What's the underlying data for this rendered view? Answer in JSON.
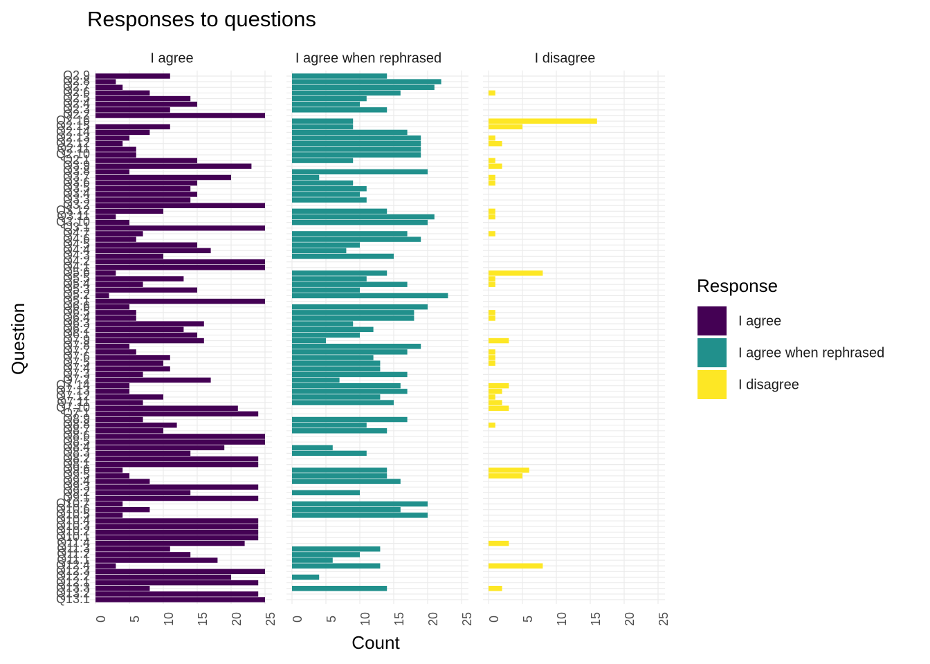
{
  "chart_data": {
    "type": "bar",
    "orientation": "horizontal",
    "facet": true,
    "title": "Responses to questions",
    "x_label": "Count",
    "y_label": "Question",
    "legend_title": "Response",
    "categories": [
      "Q2.9",
      "Q2.8",
      "Q2.7",
      "Q2.6",
      "Q2.5",
      "Q2.4",
      "Q2.3",
      "Q2.2",
      "Q2.16",
      "Q2.15",
      "Q2.14",
      "Q2.13",
      "Q2.12",
      "Q2.11",
      "Q2.10",
      "Q2.1",
      "Q3.9",
      "Q3.8",
      "Q3.7",
      "Q3.6",
      "Q3.5",
      "Q3.4",
      "Q3.3",
      "Q3.2",
      "Q3.12",
      "Q3.11",
      "Q3.10",
      "Q3.1",
      "Q4.7",
      "Q4.6",
      "Q4.5",
      "Q4.4",
      "Q4.3",
      "Q4.2",
      "Q4.1",
      "Q5.6",
      "Q5.5",
      "Q5.4",
      "Q5.3",
      "Q5.2",
      "Q5.1",
      "Q6.6",
      "Q6.5",
      "Q6.4",
      "Q6.3",
      "Q6.2",
      "Q6.1",
      "Q7.9",
      "Q7.8",
      "Q7.7",
      "Q7.6",
      "Q7.5",
      "Q7.4",
      "Q7.3",
      "Q7.2",
      "Q7.14",
      "Q7.13",
      "Q7.12",
      "Q7.11",
      "Q7.10",
      "Q7.1",
      "Q8.9",
      "Q8.8",
      "Q8.7",
      "Q8.6",
      "Q8.5",
      "Q8.4",
      "Q8.3",
      "Q8.2",
      "Q8.1",
      "Q9.6",
      "Q9.5",
      "Q9.4",
      "Q9.3",
      "Q9.2",
      "Q9.1",
      "Q10.7",
      "Q10.6",
      "Q10.5",
      "Q10.4",
      "Q10.3",
      "Q10.2",
      "Q10.1",
      "Q11.4",
      "Q11.3",
      "Q11.2",
      "Q11.1",
      "Q12.4",
      "Q12.3",
      "Q12.2",
      "Q12.1",
      "Q13.3",
      "Q13.2",
      "Q13.1"
    ],
    "series": [
      {
        "name": "I agree",
        "color": "#440154",
        "values": [
          11,
          3,
          4,
          8,
          14,
          15,
          11,
          25,
          null,
          11,
          8,
          5,
          4,
          6,
          6,
          15,
          23,
          5,
          20,
          15,
          14,
          15,
          14,
          25,
          10,
          3,
          5,
          25,
          7,
          6,
          15,
          17,
          10,
          25,
          25,
          3,
          13,
          7,
          15,
          2,
          25,
          5,
          6,
          6,
          16,
          13,
          15,
          16,
          5,
          6,
          11,
          10,
          11,
          7,
          17,
          5,
          5,
          10,
          7,
          21,
          24,
          7,
          12,
          10,
          25,
          25,
          19,
          14,
          24,
          24,
          4,
          5,
          8,
          24,
          14,
          24,
          4,
          8,
          4,
          24,
          24,
          24,
          24,
          22,
          11,
          14,
          18,
          3,
          25,
          20,
          24,
          8,
          24,
          25
        ]
      },
      {
        "name": "I agree when rephrased",
        "color": "#21908C",
        "values": [
          14,
          22,
          21,
          16,
          11,
          10,
          14,
          null,
          9,
          9,
          17,
          19,
          19,
          19,
          19,
          9,
          null,
          20,
          4,
          9,
          11,
          10,
          11,
          null,
          14,
          21,
          20,
          null,
          17,
          19,
          10,
          8,
          15,
          null,
          null,
          14,
          11,
          17,
          10,
          23,
          null,
          20,
          18,
          18,
          9,
          12,
          10,
          5,
          19,
          17,
          12,
          13,
          13,
          17,
          7,
          16,
          17,
          13,
          15,
          null,
          null,
          17,
          11,
          14,
          null,
          null,
          6,
          11,
          null,
          null,
          14,
          14,
          16,
          null,
          10,
          null,
          20,
          16,
          20,
          null,
          null,
          null,
          null,
          null,
          13,
          10,
          6,
          13,
          null,
          4,
          null,
          14,
          null,
          null
        ]
      },
      {
        "name": "I disagree",
        "color": "#FDE725",
        "values": [
          null,
          null,
          null,
          1,
          null,
          null,
          null,
          null,
          16,
          5,
          null,
          1,
          2,
          null,
          null,
          1,
          2,
          null,
          1,
          1,
          null,
          null,
          null,
          null,
          1,
          1,
          null,
          null,
          1,
          null,
          null,
          null,
          null,
          null,
          null,
          8,
          1,
          1,
          null,
          null,
          null,
          null,
          1,
          1,
          null,
          null,
          null,
          3,
          null,
          1,
          1,
          1,
          null,
          null,
          null,
          3,
          2,
          1,
          2,
          3,
          null,
          null,
          1,
          null,
          null,
          null,
          null,
          null,
          null,
          null,
          6,
          5,
          null,
          null,
          null,
          null,
          null,
          null,
          null,
          null,
          null,
          null,
          null,
          3,
          null,
          null,
          null,
          8,
          null,
          null,
          null,
          2,
          null,
          null
        ]
      }
    ],
    "xlim": [
      0,
      25
    ],
    "xticks": [
      0,
      5,
      10,
      15,
      20,
      25
    ],
    "grid": true,
    "legend_position": "right"
  }
}
